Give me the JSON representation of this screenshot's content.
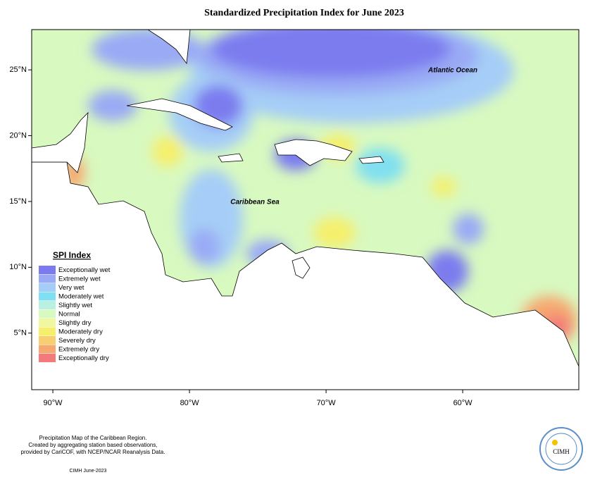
{
  "map": {
    "title": "Standardized Precipitation Index for June 2023",
    "lonlim": [
      -91.55,
      -51.5
    ],
    "latlim": [
      0.7,
      28.06
    ],
    "lon_ticks": [
      {
        "value": -90,
        "label": "90°W"
      },
      {
        "value": -80,
        "label": "80°W"
      },
      {
        "value": -70,
        "label": "70°W"
      },
      {
        "value": -60,
        "label": "60°W"
      }
    ],
    "lat_ticks": [
      {
        "value": 25,
        "label": "25°N"
      },
      {
        "value": 20,
        "label": "20°N"
      },
      {
        "value": 15,
        "label": "15°N"
      },
      {
        "value": 10,
        "label": "10°N"
      },
      {
        "value": 5,
        "label": "5°N"
      }
    ],
    "labels": {
      "atlantic": "Atlantic Ocean",
      "caribbean": "Caribbean Sea"
    },
    "legend": {
      "title": "SPI Index",
      "items": [
        {
          "label": "Exceptionally wet",
          "color": "#7b7bef"
        },
        {
          "label": "Extremely wet",
          "color": "#9aaaf5"
        },
        {
          "label": "Very wet",
          "color": "#a6cdf7"
        },
        {
          "label": "Moderately wet",
          "color": "#80dff0"
        },
        {
          "label": "Slightly wet",
          "color": "#b8f0e2"
        },
        {
          "label": "Normal",
          "color": "#d8f9c0"
        },
        {
          "label": "Slightly dry",
          "color": "#eff8a0"
        },
        {
          "label": "Moderately dry",
          "color": "#f6ef6c"
        },
        {
          "label": "Severely dry",
          "color": "#f8cf70"
        },
        {
          "label": "Extremely dry",
          "color": "#f6a870"
        },
        {
          "label": "Exceptionally dry",
          "color": "#f27a7a"
        }
      ]
    },
    "footer": [
      "Precipitation Map of the Caribbean Region.",
      "Created by aggregating station based observations,",
      "provided by CariCOF, with NCEP/NCAR Reanalysis Data."
    ],
    "credit": "CIMH June-2023",
    "logo": "CIMH"
  }
}
